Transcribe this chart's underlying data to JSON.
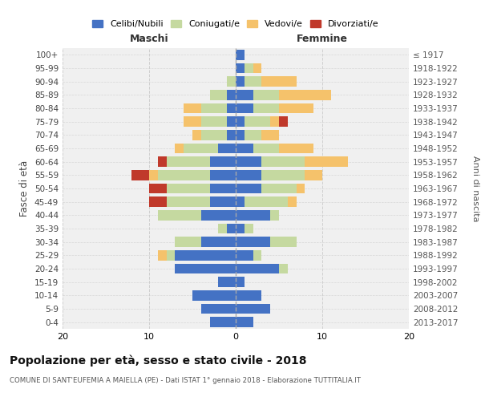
{
  "age_groups": [
    "0-4",
    "5-9",
    "10-14",
    "15-19",
    "20-24",
    "25-29",
    "30-34",
    "35-39",
    "40-44",
    "45-49",
    "50-54",
    "55-59",
    "60-64",
    "65-69",
    "70-74",
    "75-79",
    "80-84",
    "85-89",
    "90-94",
    "95-99",
    "100+"
  ],
  "birth_years": [
    "2013-2017",
    "2008-2012",
    "2003-2007",
    "1998-2002",
    "1993-1997",
    "1988-1992",
    "1983-1987",
    "1978-1982",
    "1973-1977",
    "1968-1972",
    "1963-1967",
    "1958-1962",
    "1953-1957",
    "1948-1952",
    "1943-1947",
    "1938-1942",
    "1933-1937",
    "1928-1932",
    "1923-1927",
    "1918-1922",
    "≤ 1917"
  ],
  "colors": {
    "celibi": "#4472c4",
    "coniugati": "#c5d9a0",
    "vedovi": "#f5c26b",
    "divorziati": "#c0392b"
  },
  "males": {
    "celibi": [
      3,
      4,
      5,
      2,
      7,
      7,
      4,
      1,
      4,
      3,
      3,
      3,
      3,
      2,
      1,
      1,
      1,
      1,
      0,
      0,
      0
    ],
    "coniugati": [
      0,
      0,
      0,
      0,
      0,
      1,
      3,
      1,
      5,
      5,
      5,
      6,
      5,
      4,
      3,
      3,
      3,
      2,
      1,
      0,
      0
    ],
    "vedovi": [
      0,
      0,
      0,
      0,
      0,
      1,
      0,
      0,
      0,
      0,
      0,
      1,
      0,
      1,
      1,
      2,
      2,
      0,
      0,
      0,
      0
    ],
    "divorziati": [
      0,
      0,
      0,
      0,
      0,
      0,
      0,
      0,
      0,
      2,
      2,
      2,
      1,
      0,
      0,
      0,
      0,
      0,
      0,
      0,
      0
    ]
  },
  "females": {
    "celibi": [
      2,
      4,
      3,
      1,
      5,
      2,
      4,
      1,
      4,
      1,
      3,
      3,
      3,
      2,
      1,
      1,
      2,
      2,
      1,
      1,
      1
    ],
    "coniugati": [
      0,
      0,
      0,
      0,
      1,
      1,
      3,
      1,
      1,
      5,
      4,
      5,
      5,
      3,
      2,
      3,
      3,
      3,
      2,
      1,
      0
    ],
    "vedovi": [
      0,
      0,
      0,
      0,
      0,
      0,
      0,
      0,
      0,
      1,
      1,
      2,
      5,
      4,
      2,
      1,
      4,
      6,
      4,
      1,
      0
    ],
    "divorziati": [
      0,
      0,
      0,
      0,
      0,
      0,
      0,
      0,
      0,
      0,
      0,
      0,
      0,
      0,
      0,
      1,
      0,
      0,
      0,
      0,
      0
    ]
  },
  "xlim": 20,
  "title": "Popolazione per età, sesso e stato civile - 2018",
  "subtitle": "COMUNE DI SANT'EUFEMIA A MAIELLA (PE) - Dati ISTAT 1° gennaio 2018 - Elaborazione TUTTITALIA.IT",
  "xlabel_left": "Maschi",
  "xlabel_right": "Femmine",
  "ylabel": "Fasce di età",
  "ylabel_right": "Anni di nascita",
  "legend_labels": [
    "Celibi/Nubili",
    "Coniugati/e",
    "Vedovi/e",
    "Divorziati/e"
  ],
  "bg_color": "#f0f0f0",
  "grid_color": "#cccccc"
}
